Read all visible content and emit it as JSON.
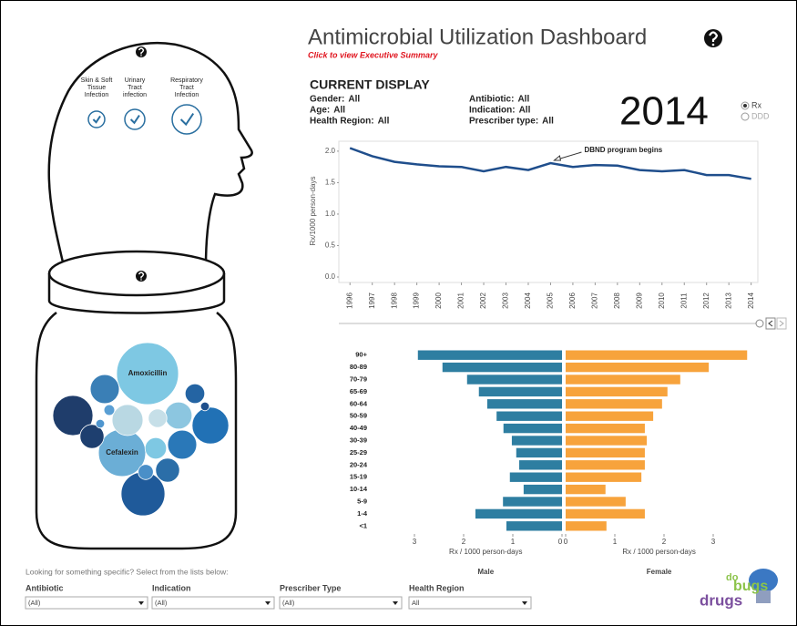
{
  "header": {
    "title": "Antimicrobial Utilization Dashboard",
    "summary_link": "Click to view Executive Summary"
  },
  "current_display": {
    "heading": "CURRENT DISPLAY",
    "filters": [
      {
        "label": "Gender:",
        "value": "All"
      },
      {
        "label": "Age:",
        "value": "All"
      },
      {
        "label": "Health Region:",
        "value": "All"
      },
      {
        "label": "Antibiotic:",
        "value": "All"
      },
      {
        "label": "Indication:",
        "value": "All"
      },
      {
        "label": "Prescriber type:",
        "value": "All"
      }
    ],
    "year": "2014",
    "measure_options": [
      "Rx",
      "DDD"
    ]
  },
  "infection_types": [
    [
      "Skin & Soft",
      "Tissue",
      "Infection"
    ],
    [
      "Urinary",
      "Tract",
      "infection"
    ],
    [
      "Respiratory",
      "Tract",
      "Infection"
    ]
  ],
  "chart_data": [
    {
      "type": "line",
      "y_label": "Rx/1000 person-days",
      "x": [
        1996,
        1997,
        1998,
        1999,
        2000,
        2001,
        2002,
        2003,
        2004,
        2005,
        2006,
        2007,
        2008,
        2009,
        2010,
        2011,
        2012,
        2013,
        2014
      ],
      "values": [
        2.05,
        1.92,
        1.83,
        1.79,
        1.76,
        1.75,
        1.68,
        1.75,
        1.7,
        1.81,
        1.75,
        1.78,
        1.77,
        1.7,
        1.68,
        1.7,
        1.62,
        1.62,
        1.56
      ],
      "color": "#1f4e8c",
      "xlim": [
        1995.5,
        2014.3
      ],
      "xticks": [
        1996,
        1997,
        1998,
        1999,
        2000,
        2001,
        2002,
        2003,
        2004,
        2005,
        2006,
        2007,
        2008,
        2009,
        2010,
        2011,
        2012,
        2013,
        2014
      ],
      "ylim": [
        0,
        2.1
      ],
      "yticks": [
        {
          "value": 0,
          "label": "0.0"
        },
        {
          "value": 0.5,
          "label": "0.5"
        },
        {
          "value": 1,
          "label": "1.0"
        },
        {
          "value": 1.5,
          "label": "1.5"
        },
        {
          "value": 2,
          "label": "2.0"
        }
      ],
      "annotation": {
        "text": "DBND program begins",
        "x": 2005
      }
    },
    {
      "type": "bubble",
      "labels": [
        "Amoxicillin",
        "Cefalexin",
        null,
        null,
        null,
        null,
        null,
        null,
        null,
        null,
        null,
        null,
        null,
        null,
        null,
        null,
        null,
        null
      ],
      "values": [
        100,
        58,
        42,
        35,
        50,
        22,
        22,
        15,
        15,
        10,
        25,
        12,
        19,
        9,
        6,
        3,
        2,
        2
      ],
      "colors": [
        "#7ec8e3",
        "#6baed6",
        "#1f3d6b",
        "#2171b5",
        "#1f5a9a",
        "#3a7fb6",
        "#2a78b8",
        "#2b6ea8",
        "#1e3f6f",
        "#2464a3",
        "#b9d8e3",
        "#7ec8e3",
        "#8cc6e0",
        "#c6dfe8",
        "#4a8fc8",
        "#5a9fd4",
        "#1e4f8c",
        "#4f96cf"
      ]
    },
    {
      "type": "population_pyramid",
      "x_label": "Rx / 1000 person-days",
      "categories": [
        "90+",
        "80-89",
        "70-79",
        "65-69",
        "60-64",
        "50-59",
        "40-49",
        "30-39",
        "25-29",
        "20-24",
        "15-19",
        "10-14",
        "5-9",
        "1-4",
        "<1"
      ],
      "series": [
        {
          "name": "Male",
          "color": "#2e7ea1",
          "values": [
            2.93,
            2.43,
            1.93,
            1.69,
            1.52,
            1.33,
            1.19,
            1.02,
            0.93,
            0.87,
            1.06,
            0.78,
            1.2,
            1.76,
            1.13
          ],
          "xlim": [
            0,
            3.1
          ],
          "xticks": [
            3,
            2,
            1,
            0
          ],
          "reversed": true
        },
        {
          "name": "Female",
          "color": "#f7a33c",
          "values": [
            3.69,
            2.91,
            2.33,
            2.07,
            1.96,
            1.78,
            1.61,
            1.65,
            1.61,
            1.61,
            1.54,
            0.81,
            1.22,
            1.61,
            0.83
          ],
          "xlim": [
            0,
            3.8
          ],
          "xticks": [
            0,
            1,
            2,
            3
          ],
          "reversed": false
        }
      ]
    }
  ],
  "filters_panel": {
    "prompt": "Looking for something specific? Select from the lists below:",
    "dropdowns": [
      {
        "label": "Antibiotic",
        "value": "(All)"
      },
      {
        "label": "Indication",
        "value": "(All)"
      },
      {
        "label": "Prescriber Type",
        "value": "(All)"
      },
      {
        "label": "Health Region",
        "value": "All"
      }
    ]
  },
  "logo": [
    "do",
    "bugs",
    "drugs"
  ]
}
